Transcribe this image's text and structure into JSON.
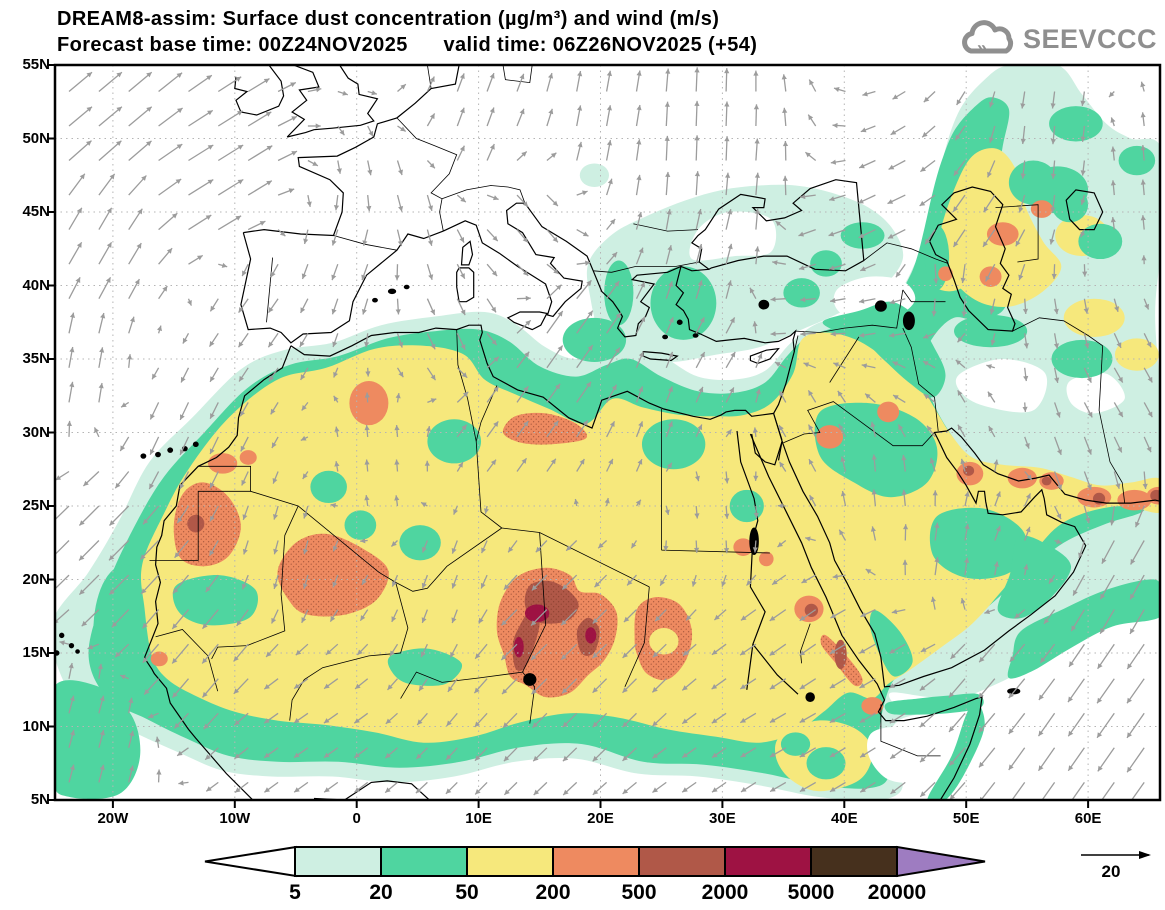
{
  "header": {
    "line1": "DREAM8-assim: Surface dust concentration (µg/m³) and wind (m/s)",
    "line2": "Forecast base time: 00Z24NOV2025      valid time: 06Z26NOV2025 (+54)"
  },
  "logo": {
    "text": "SEEVCCC"
  },
  "axes": {
    "lat_labels": [
      "55N",
      "50N",
      "45N",
      "40N",
      "35N",
      "30N",
      "25N",
      "20N",
      "15N",
      "10N",
      "5N"
    ],
    "lat_values": [
      55,
      50,
      45,
      40,
      35,
      30,
      25,
      20,
      15,
      10,
      5
    ],
    "lon_labels": [
      "20W",
      "10W",
      "0",
      "10E",
      "20E",
      "30E",
      "40E",
      "50E",
      "60E"
    ],
    "lon_values": [
      -20,
      -10,
      0,
      10,
      20,
      30,
      40,
      50,
      60
    ]
  },
  "legend": {
    "levels": [
      "5",
      "20",
      "50",
      "200",
      "500",
      "2000",
      "5000",
      "20000"
    ],
    "band_colors": [
      "#ceefe2",
      "#4fd5a0",
      "#f6e87c",
      "#ee8a60",
      "#b05848",
      "#9e1243",
      "#46301d"
    ],
    "below_color": "#ffffff",
    "above_color": "#9e7cc1"
  },
  "wind_ref": {
    "label": "20"
  },
  "style_colors": {
    "arrow_gray": "#9c9c9c",
    "logo_gray": "#8f8f8f",
    "grid_gray": "#b5b5b5",
    "coast_black": "#000000"
  }
}
